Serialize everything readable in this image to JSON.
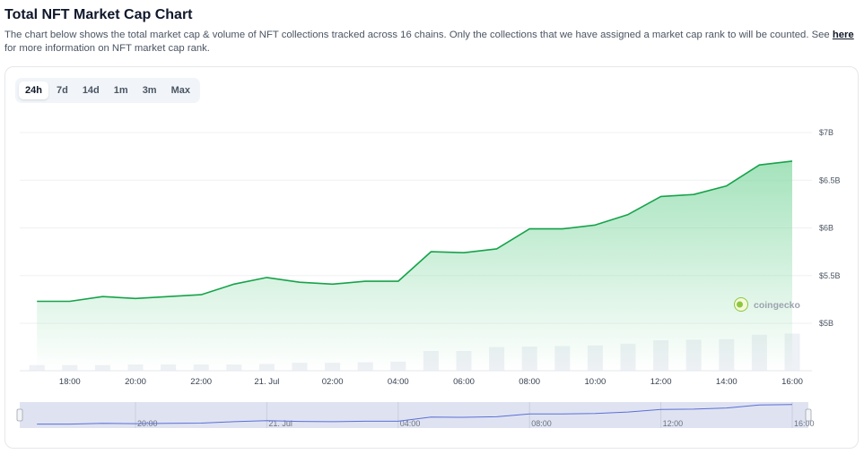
{
  "header": {
    "title": "Total NFT Market Cap Chart",
    "description": "The chart below shows the total market cap & volume of NFT collections tracked across 16 chains. Only the collections that we have assigned a market cap rank to will be counted. See ",
    "link_text": "here",
    "description_end": " for more information on NFT market cap rank."
  },
  "tabs": [
    {
      "label": "24h",
      "active": true
    },
    {
      "label": "7d",
      "active": false
    },
    {
      "label": "14d",
      "active": false
    },
    {
      "label": "1m",
      "active": false
    },
    {
      "label": "3m",
      "active": false
    },
    {
      "label": "Max",
      "active": false
    }
  ],
  "watermark": "coingecko",
  "colors": {
    "line": "#16a34a",
    "area_top": "#86d9a5",
    "volume_bar": "#eef1f5",
    "navigator_fill": "#dfe3f1",
    "navigator_line": "#5b6fd6",
    "brand_icon": "#8dc63f"
  },
  "chart_data": {
    "type": "line",
    "title": "",
    "xlabel": "",
    "ylabel": "",
    "y_unit": "$B",
    "ylim": [
      4.5,
      7.0
    ],
    "y_ticks": [
      5.0,
      5.5,
      6.0,
      6.5,
      7.0
    ],
    "y_tick_labels": [
      "$5B",
      "$5.5B",
      "$6B",
      "$6.5B",
      "$7B"
    ],
    "x_ticks": [
      {
        "label": "18:00",
        "hour": 18
      },
      {
        "label": "20:00",
        "hour": 20
      },
      {
        "label": "22:00",
        "hour": 22
      },
      {
        "label": "21. Jul",
        "hour": 24
      },
      {
        "label": "02:00",
        "hour": 26
      },
      {
        "label": "04:00",
        "hour": 28
      },
      {
        "label": "06:00",
        "hour": 30
      },
      {
        "label": "08:00",
        "hour": 32
      },
      {
        "label": "10:00",
        "hour": 34
      },
      {
        "label": "12:00",
        "hour": 36
      },
      {
        "label": "14:00",
        "hour": 38
      },
      {
        "label": "16:00",
        "hour": 40
      }
    ],
    "series": [
      {
        "x": [
          17.0,
          18.0,
          19.0,
          20.0,
          21.0,
          22.0,
          23.0,
          24.0,
          25.0,
          26.0,
          27.0,
          28.0,
          29.0,
          30.0,
          31.0,
          32.0,
          33.0,
          34.0,
          35.0,
          36.0,
          37.0,
          38.0,
          39.0,
          40.0
        ],
        "values": [
          5.23,
          5.23,
          5.28,
          5.26,
          5.28,
          5.3,
          5.41,
          5.48,
          5.43,
          5.41,
          5.44,
          5.44,
          5.75,
          5.74,
          5.78,
          5.99,
          5.99,
          6.03,
          6.14,
          6.33,
          6.35,
          6.44,
          6.66,
          6.7
        ]
      }
    ],
    "volume": [
      1,
      1,
      1,
      1.1,
      1.1,
      1.1,
      1.1,
      1.2,
      1.4,
      1.4,
      1.5,
      1.6,
      3.5,
      3.5,
      4.2,
      4.3,
      4.4,
      4.5,
      4.8,
      5.4,
      5.5,
      5.6,
      6.4,
      6.6
    ],
    "navigator_ticks": [
      {
        "label": "20:00",
        "hour": 20
      },
      {
        "label": "21. Jul",
        "hour": 24
      },
      {
        "label": "04:00",
        "hour": 28
      },
      {
        "label": "08:00",
        "hour": 32
      },
      {
        "label": "12:00",
        "hour": 36
      },
      {
        "label": "16:00",
        "hour": 40
      }
    ],
    "grid": true,
    "legend": "none"
  }
}
